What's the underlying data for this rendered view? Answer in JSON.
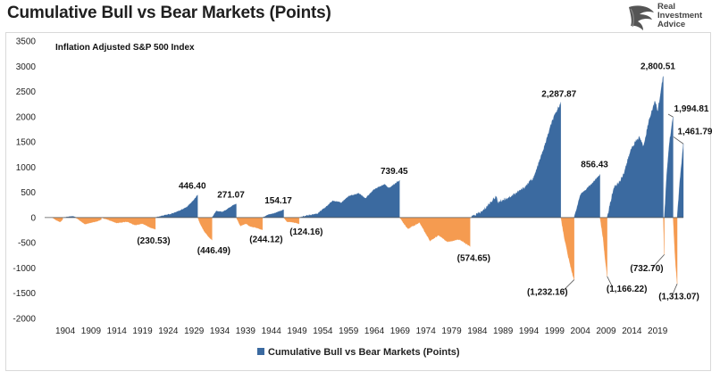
{
  "title": "Cumulative Bull vs Bear Markets (Points)",
  "logo": {
    "line1": "Real",
    "line2": "Investment",
    "line3": "Advice",
    "icon": "eagle-icon"
  },
  "colors": {
    "bull": "#3b6aa0",
    "bear": "#f59b50"
  },
  "chart_data": {
    "type": "area",
    "title": "Cumulative Bull vs Bear Markets (Points)",
    "subtitle": "Inflation Adjusted S&P 500 Index",
    "xlabel": "",
    "ylabel": "",
    "ylim": [
      -2000,
      3500
    ],
    "yticks": [
      -2000,
      -1500,
      -1000,
      -500,
      0,
      500,
      1000,
      1500,
      2000,
      2500,
      3000,
      3500
    ],
    "xlim": [
      1900,
      2024
    ],
    "xticks": [
      "1904",
      "1909",
      "1914",
      "1919",
      "1924",
      "1929",
      "1934",
      "1939",
      "1944",
      "1949",
      "1954",
      "1959",
      "1964",
      "1969",
      "1974",
      "1979",
      "1984",
      "1989",
      "1994",
      "1999",
      "2004",
      "2009",
      "2014",
      "2019"
    ],
    "legend": {
      "position": "bottom",
      "label": "Cumulative Bull vs Bear Markets (Points)"
    },
    "grid": false,
    "series": [
      {
        "name": "Cumulative Bull vs Bear Markets (Points)",
        "segments": [
          {
            "kind": "bear",
            "start": 1901.5,
            "end": 1903.5,
            "points": [
              [
                1901.5,
                0
              ],
              [
                1902.2,
                -50
              ],
              [
                1903.0,
                -90
              ],
              [
                1903.5,
                -40
              ]
            ]
          },
          {
            "kind": "bull",
            "start": 1903.5,
            "end": 1906.0,
            "points": [
              [
                1903.5,
                0
              ],
              [
                1904.5,
                15
              ],
              [
                1905.5,
                25
              ],
              [
                1906.0,
                10
              ]
            ]
          },
          {
            "kind": "bear",
            "start": 1906.0,
            "end": 1911.0,
            "points": [
              [
                1906.0,
                0
              ],
              [
                1907.0,
                -70
              ],
              [
                1907.8,
                -130
              ],
              [
                1909.0,
                -100
              ],
              [
                1910.0,
                -80
              ],
              [
                1911.0,
                -40
              ]
            ]
          },
          {
            "kind": "bear",
            "start": 1911.0,
            "end": 1921.5,
            "points": [
              [
                1911.0,
                0
              ],
              [
                1912.5,
                -50
              ],
              [
                1914.0,
                -110
              ],
              [
                1916.0,
                -80
              ],
              [
                1917.5,
                -150
              ],
              [
                1919.0,
                -120
              ],
              [
                1920.5,
                -200
              ],
              [
                1921.5,
                -230.53
              ]
            ],
            "label": "(230.53)"
          },
          {
            "kind": "bull",
            "start": 1921.5,
            "end": 1929.7,
            "points": [
              [
                1921.5,
                0
              ],
              [
                1923.0,
                40
              ],
              [
                1924.5,
                70
              ],
              [
                1926.0,
                130
              ],
              [
                1927.5,
                200
              ],
              [
                1928.8,
                330
              ],
              [
                1929.7,
                446.4
              ]
            ],
            "label": "446.40"
          },
          {
            "kind": "bear",
            "start": 1929.7,
            "end": 1932.5,
            "points": [
              [
                1929.7,
                0
              ],
              [
                1930.3,
                -150
              ],
              [
                1931.0,
                -280
              ],
              [
                1931.8,
                -380
              ],
              [
                1932.5,
                -446.49
              ]
            ],
            "label": "(446.49)"
          },
          {
            "kind": "bull",
            "start": 1932.5,
            "end": 1937.2,
            "points": [
              [
                1932.5,
                0
              ],
              [
                1933.3,
                130
              ],
              [
                1934.5,
                110
              ],
              [
                1935.5,
                170
              ],
              [
                1936.5,
                240
              ],
              [
                1937.2,
                271.07
              ]
            ],
            "label": "271.07"
          },
          {
            "kind": "bear",
            "start": 1937.2,
            "end": 1942.3,
            "points": [
              [
                1937.2,
                0
              ],
              [
                1938.0,
                -170
              ],
              [
                1939.0,
                -120
              ],
              [
                1940.0,
                -180
              ],
              [
                1941.0,
                -200
              ],
              [
                1942.3,
                -244.12
              ]
            ],
            "label": "(244.12)"
          },
          {
            "kind": "bull",
            "start": 1942.3,
            "end": 1946.4,
            "points": [
              [
                1942.3,
                0
              ],
              [
                1943.5,
                60
              ],
              [
                1944.5,
                80
              ],
              [
                1945.5,
                120
              ],
              [
                1946.4,
                154.17
              ]
            ],
            "label": "154.17"
          },
          {
            "kind": "bear",
            "start": 1946.4,
            "end": 1949.4,
            "points": [
              [
                1946.4,
                0
              ],
              [
                1947.0,
                -80
              ],
              [
                1948.0,
                -90
              ],
              [
                1949.0,
                -110
              ],
              [
                1949.4,
                -124.16
              ]
            ],
            "label": "(124.16)"
          },
          {
            "kind": "bull",
            "start": 1949.4,
            "end": 1968.9,
            "points": [
              [
                1949.4,
                0
              ],
              [
                1951.0,
                40
              ],
              [
                1953.0,
                80
              ],
              [
                1954.5,
                200
              ],
              [
                1956.0,
                340
              ],
              [
                1957.5,
                290
              ],
              [
                1959.0,
                420
              ],
              [
                1961.0,
                480
              ],
              [
                1962.3,
                380
              ],
              [
                1964.0,
                560
              ],
              [
                1966.0,
                660
              ],
              [
                1966.8,
                580
              ],
              [
                1968.9,
                739.45
              ]
            ],
            "label": "739.45"
          },
          {
            "kind": "bear",
            "start": 1968.9,
            "end": 1982.6,
            "points": [
              [
                1968.9,
                0
              ],
              [
                1970.5,
                -220
              ],
              [
                1972.8,
                -100
              ],
              [
                1974.8,
                -460
              ],
              [
                1976.5,
                -350
              ],
              [
                1978.2,
                -480
              ],
              [
                1980.5,
                -430
              ],
              [
                1982.6,
                -574.65
              ]
            ],
            "label": "(574.65)"
          },
          {
            "kind": "bull",
            "start": 1982.6,
            "end": 2000.2,
            "points": [
              [
                1982.6,
                0
              ],
              [
                1985.0,
                120
              ],
              [
                1987.6,
                420
              ],
              [
                1988.0,
                300
              ],
              [
                1990.5,
                420
              ],
              [
                1993.0,
                580
              ],
              [
                1995.0,
                800
              ],
              [
                1997.0,
                1400
              ],
              [
                1998.5,
                1900
              ],
              [
                2000.2,
                2287.87
              ]
            ],
            "label": "2,287.87"
          },
          {
            "kind": "bear",
            "start": 2000.2,
            "end": 2002.8,
            "points": [
              [
                2000.2,
                0
              ],
              [
                2000.9,
                -400
              ],
              [
                2001.7,
                -800
              ],
              [
                2002.3,
                -1050
              ],
              [
                2002.8,
                -1232.16
              ]
            ],
            "label": "(1,232.16)"
          },
          {
            "kind": "bull",
            "start": 2002.8,
            "end": 2007.8,
            "points": [
              [
                2002.8,
                0
              ],
              [
                2004.0,
                450
              ],
              [
                2005.0,
                550
              ],
              [
                2006.5,
                700
              ],
              [
                2007.8,
                856.43
              ]
            ],
            "label": "856.43"
          },
          {
            "kind": "bear",
            "start": 2007.8,
            "end": 2009.2,
            "points": [
              [
                2007.8,
                0
              ],
              [
                2008.4,
                -400
              ],
              [
                2008.9,
                -900
              ],
              [
                2009.2,
                -1166.22
              ]
            ],
            "label": "(1,166.22)"
          },
          {
            "kind": "bull",
            "start": 2009.2,
            "end": 2020.1,
            "points": [
              [
                2009.2,
                0
              ],
              [
                2010.5,
                600
              ],
              [
                2011.6,
                700
              ],
              [
                2012.5,
                900
              ],
              [
                2014.0,
                1400
              ],
              [
                2015.5,
                1600
              ],
              [
                2016.2,
                1400
              ],
              [
                2017.5,
                2000
              ],
              [
                2018.5,
                2300
              ],
              [
                2019.0,
                2100
              ],
              [
                2020.1,
                2800.51
              ]
            ],
            "label": "2,800.51"
          },
          {
            "kind": "bear",
            "start": 2020.1,
            "end": 2020.3,
            "points": [
              [
                2020.1,
                0
              ],
              [
                2020.3,
                -732.7
              ]
            ],
            "label": "(732.70)"
          },
          {
            "kind": "bull",
            "start": 2020.3,
            "end": 2022.0,
            "points": [
              [
                2020.3,
                0
              ],
              [
                2020.8,
                900
              ],
              [
                2021.3,
                1500
              ],
              [
                2022.0,
                1994.81
              ]
            ],
            "label": "1,994.81"
          },
          {
            "kind": "bear",
            "start": 2022.0,
            "end": 2022.8,
            "points": [
              [
                2022.0,
                0
              ],
              [
                2022.4,
                -800
              ],
              [
                2022.8,
                -1313.07
              ]
            ],
            "label": "(1,313.07)"
          },
          {
            "kind": "bull",
            "start": 2022.8,
            "end": 2024.0,
            "points": [
              [
                2022.8,
                0
              ],
              [
                2023.3,
                700
              ],
              [
                2024.0,
                1461.79
              ]
            ],
            "label": "1,461.79"
          }
        ]
      }
    ]
  }
}
